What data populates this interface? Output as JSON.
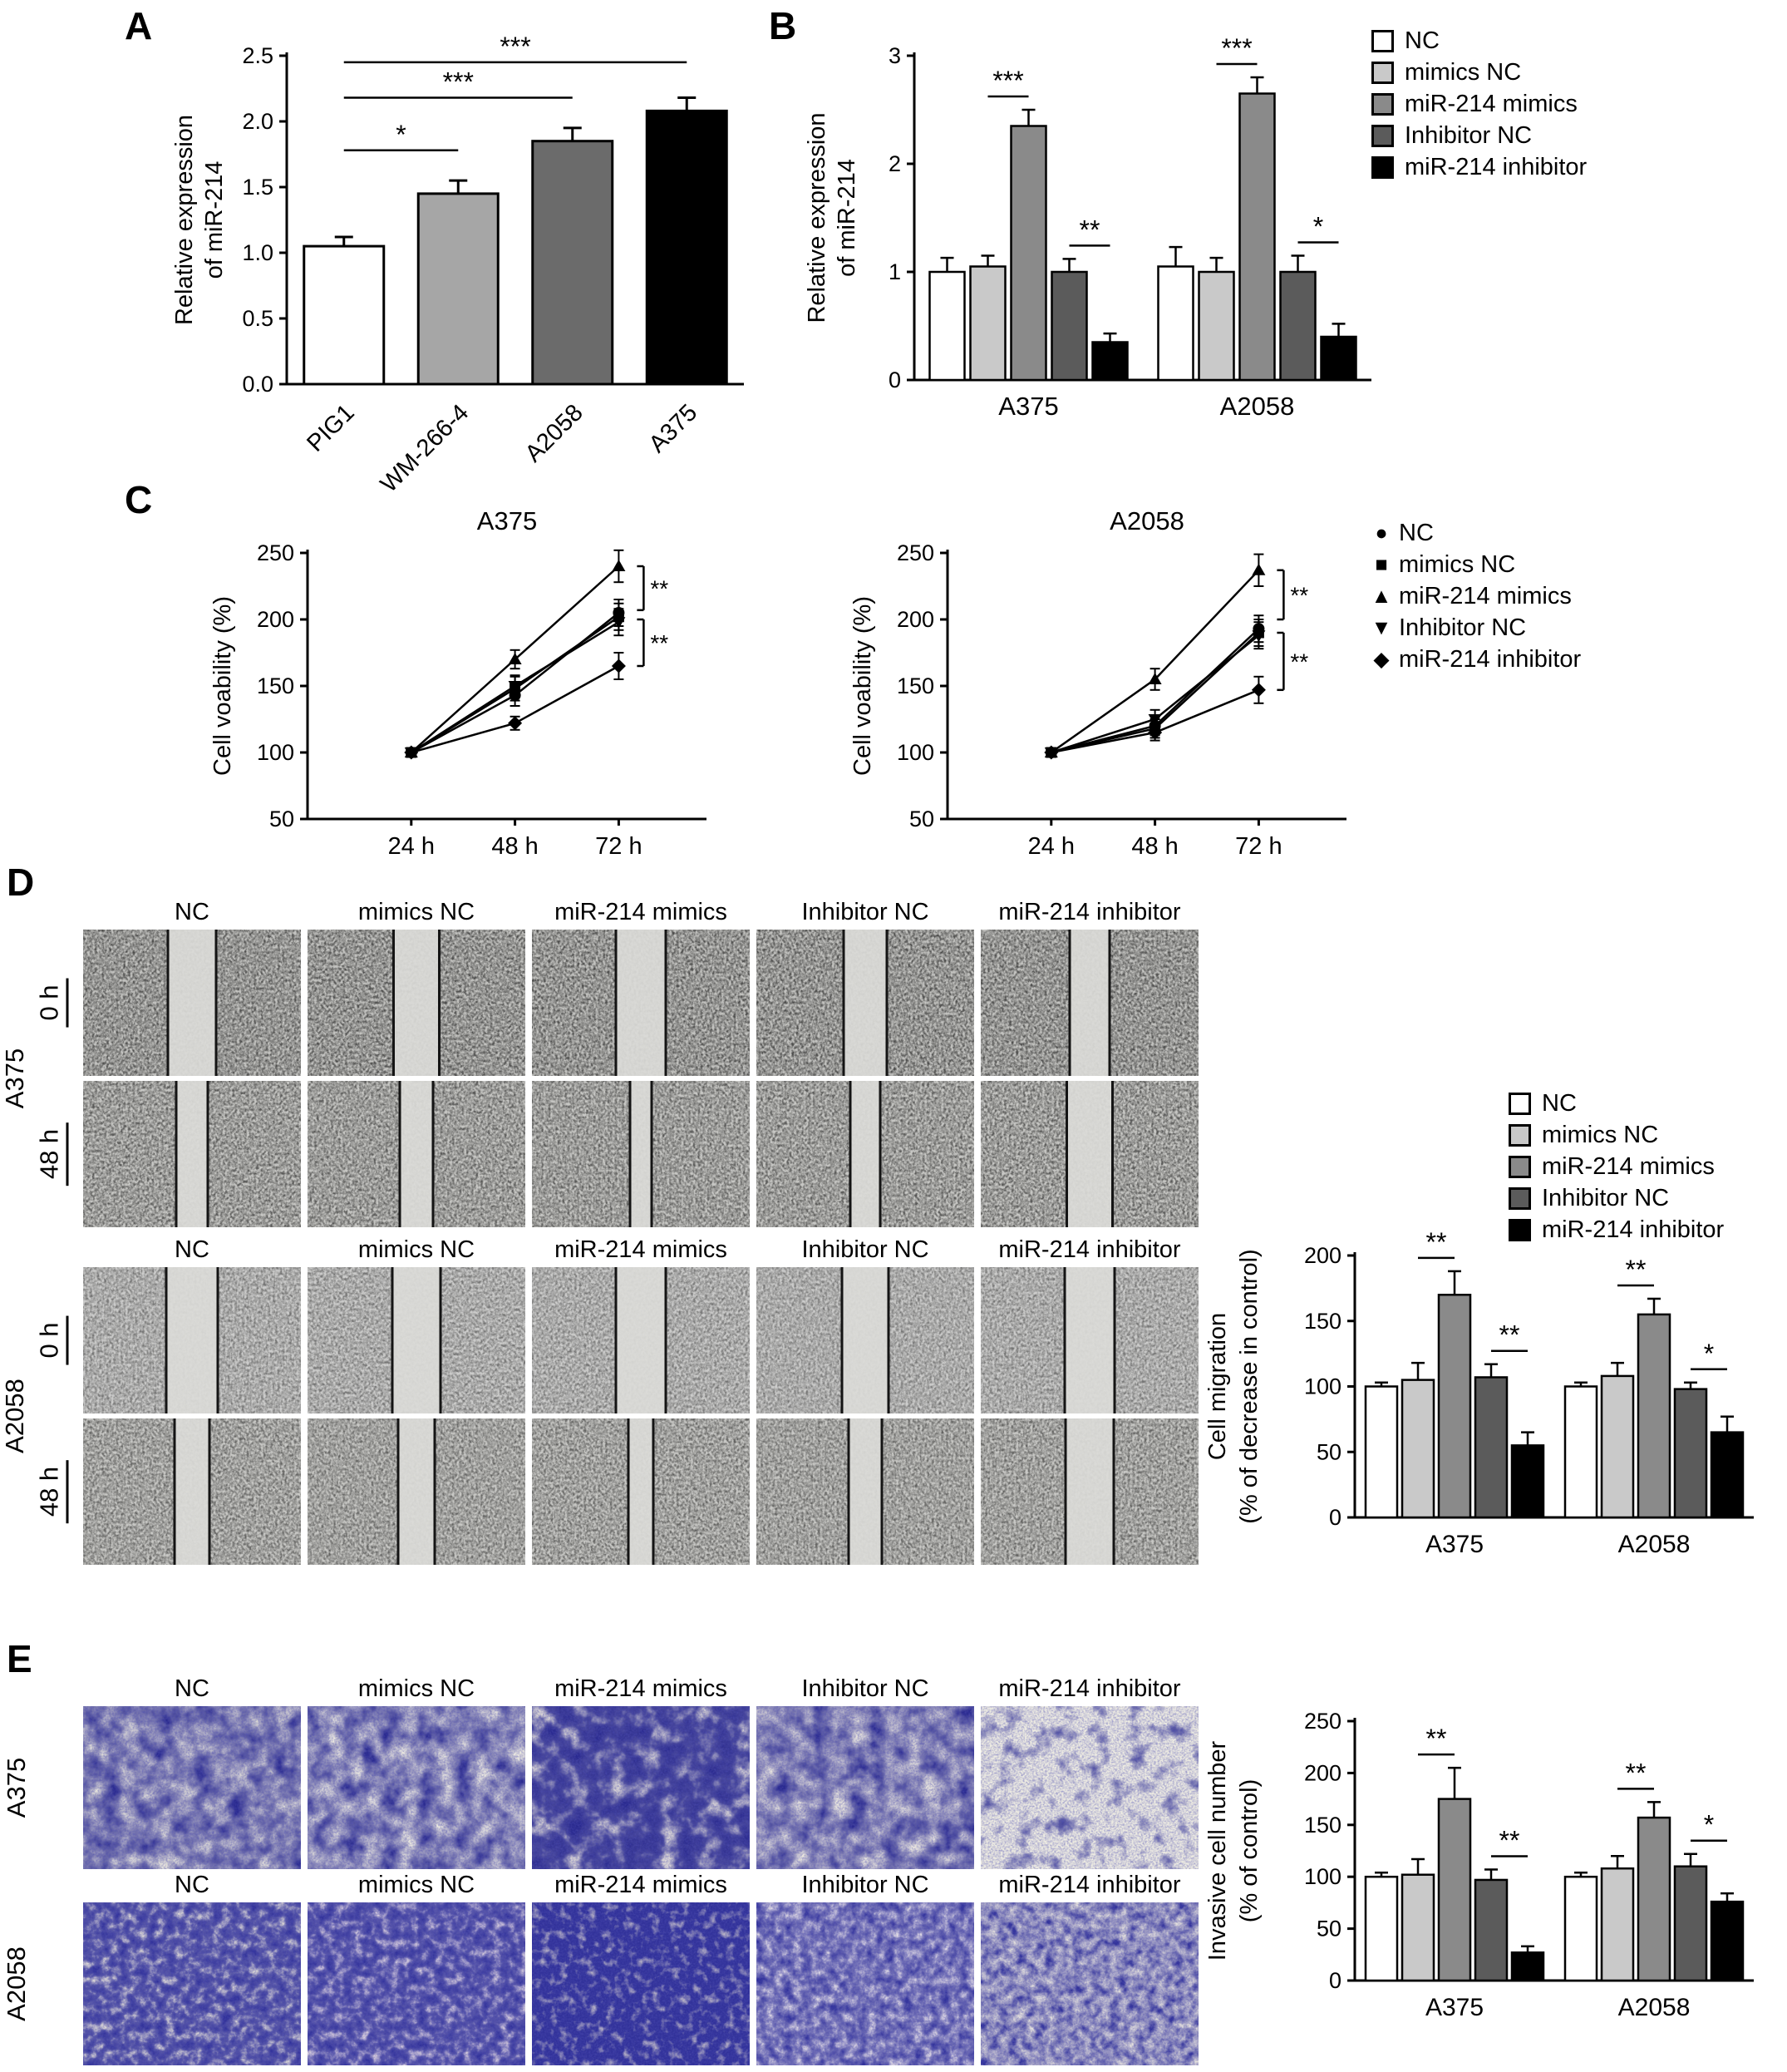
{
  "panel_labels": {
    "a": "A",
    "b": "B",
    "c": "C",
    "d": "D",
    "e": "E"
  },
  "groups": [
    "NC",
    "mimics NC",
    "miR-214 mimics",
    "Inhibitor NC",
    "miR-214 inhibitor"
  ],
  "group_colors": [
    "#ffffff",
    "#c9c9c9",
    "#8a8a8a",
    "#5b5b5b",
    "#000000"
  ],
  "legend_markers": [
    "●",
    "■",
    "▲",
    "▼",
    "◆"
  ],
  "panel_d": {
    "column_headers": [
      "NC",
      "mimics NC",
      "miR-214 mimics",
      "Inhibitor NC",
      "miR-214 inhibitor"
    ],
    "row_blocks": [
      {
        "cell_line": "A375",
        "timepoints": [
          "0 h",
          "48 h"
        ]
      },
      {
        "cell_line": "A2058",
        "timepoints": [
          "0 h",
          "48 h"
        ]
      }
    ]
  },
  "panel_e": {
    "column_headers": [
      "NC",
      "mimics NC",
      "miR-214 mimics",
      "Inhibitor NC",
      "miR-214 inhibitor"
    ],
    "cell_lines": [
      "A375",
      "A2058"
    ]
  },
  "chart_data": [
    {
      "id": "panel-a-chart",
      "type": "bar",
      "ylabel_lines": [
        "Relative expression",
        "of miR-214"
      ],
      "categories": [
        "PIG1",
        "WM-266-4",
        "A2058",
        "A375"
      ],
      "values": [
        1.05,
        1.45,
        1.85,
        2.08
      ],
      "errors": [
        0.07,
        0.1,
        0.1,
        0.1
      ],
      "bar_colors": [
        "#ffffff",
        "#a6a6a6",
        "#6b6b6b",
        "#000000"
      ],
      "ylim": [
        0,
        2.5
      ],
      "yticks": [
        0,
        0.5,
        1,
        1.5,
        2,
        2.5
      ],
      "ytick_labels": [
        "0.0",
        "0.5",
        "1.0",
        "1.5",
        "2.0",
        "2.5"
      ],
      "significance": [
        {
          "from": 0,
          "to": 1,
          "label": "*",
          "y": 1.78
        },
        {
          "from": 0,
          "to": 2,
          "label": "***",
          "y": 2.18
        },
        {
          "from": 0,
          "to": 3,
          "label": "***",
          "y": 2.45
        }
      ]
    },
    {
      "id": "panel-b-chart",
      "type": "grouped_bar",
      "ylabel_lines": [
        "Relative expression",
        "of miR-214"
      ],
      "categories": [
        "A375",
        "A2058"
      ],
      "series": [
        {
          "name": "NC",
          "values": [
            1.0,
            1.05
          ],
          "errors": [
            0.13,
            0.18
          ]
        },
        {
          "name": "mimics NC",
          "values": [
            1.05,
            1.0
          ],
          "errors": [
            0.1,
            0.13
          ]
        },
        {
          "name": "miR-214 mimics",
          "values": [
            2.35,
            2.65
          ],
          "errors": [
            0.15,
            0.15
          ]
        },
        {
          "name": "Inhibitor NC",
          "values": [
            1.0,
            1.0
          ],
          "errors": [
            0.12,
            0.15
          ]
        },
        {
          "name": "miR-214 inhibitor",
          "values": [
            0.35,
            0.4
          ],
          "errors": [
            0.08,
            0.12
          ]
        }
      ],
      "ylim": [
        0,
        3
      ],
      "yticks": [
        0,
        1,
        2,
        3
      ],
      "ytick_labels": [
        "0",
        "1",
        "2",
        "3"
      ],
      "significance": [
        {
          "group": 0,
          "a": 1,
          "b": 2,
          "label": "***"
        },
        {
          "group": 0,
          "a": 3,
          "b": 4,
          "label": "**"
        },
        {
          "group": 1,
          "a": 1,
          "b": 2,
          "label": "***"
        },
        {
          "group": 1,
          "a": 3,
          "b": 4,
          "label": "*"
        }
      ]
    },
    {
      "id": "panel-c-a375",
      "type": "line",
      "title": "A375",
      "ylabel": "Cell voability (%)",
      "x": [
        "24 h",
        "48 h",
        "72 h"
      ],
      "series": [
        {
          "name": "NC",
          "marker": "circle",
          "values": [
            100,
            143,
            205
          ],
          "errors": [
            3,
            8,
            10
          ]
        },
        {
          "name": "mimics NC",
          "marker": "square",
          "values": [
            100,
            148,
            202
          ],
          "errors": [
            3,
            9,
            10
          ]
        },
        {
          "name": "miR-214 mimics",
          "marker": "triangle-up",
          "values": [
            100,
            170,
            240
          ],
          "errors": [
            3,
            7,
            12
          ]
        },
        {
          "name": "Inhibitor NC",
          "marker": "triangle-down",
          "values": [
            100,
            150,
            198
          ],
          "errors": [
            3,
            8,
            10
          ]
        },
        {
          "name": "miR-214 inhibitor",
          "marker": "diamond",
          "values": [
            100,
            122,
            165
          ],
          "errors": [
            3,
            5,
            10
          ]
        }
      ],
      "ylim": [
        50,
        250
      ],
      "yticks": [
        50,
        100,
        150,
        200,
        250
      ],
      "significance": [
        {
          "label": "**",
          "from": 240,
          "to": 207
        },
        {
          "label": "**",
          "from": 200,
          "to": 165
        }
      ]
    },
    {
      "id": "panel-c-a2058",
      "type": "line",
      "title": "A2058",
      "ylabel": "Cell voability (%)",
      "x": [
        "24 h",
        "48 h",
        "72 h"
      ],
      "series": [
        {
          "name": "NC",
          "marker": "circle",
          "values": [
            100,
            120,
            193
          ],
          "errors": [
            3,
            7,
            10
          ]
        },
        {
          "name": "mimics NC",
          "marker": "square",
          "values": [
            100,
            118,
            190
          ],
          "errors": [
            3,
            7,
            10
          ]
        },
        {
          "name": "miR-214 mimics",
          "marker": "triangle-up",
          "values": [
            100,
            155,
            237
          ],
          "errors": [
            3,
            8,
            12
          ]
        },
        {
          "name": "Inhibitor NC",
          "marker": "triangle-down",
          "values": [
            100,
            125,
            188
          ],
          "errors": [
            3,
            7,
            10
          ]
        },
        {
          "name": "miR-214 inhibitor",
          "marker": "diamond",
          "values": [
            100,
            115,
            147
          ],
          "errors": [
            3,
            6,
            10
          ]
        }
      ],
      "ylim": [
        50,
        250
      ],
      "yticks": [
        50,
        100,
        150,
        200,
        250
      ],
      "significance": [
        {
          "label": "**",
          "from": 237,
          "to": 200
        },
        {
          "label": "**",
          "from": 190,
          "to": 147
        }
      ]
    },
    {
      "id": "panel-d-chart",
      "type": "grouped_bar",
      "ylabel_lines": [
        "Cell migration",
        "(% of decrease in control)"
      ],
      "categories": [
        "A375",
        "A2058"
      ],
      "series": [
        {
          "name": "NC",
          "values": [
            100,
            100
          ],
          "errors": [
            3,
            3
          ]
        },
        {
          "name": "mimics NC",
          "values": [
            105,
            108
          ],
          "errors": [
            13,
            10
          ]
        },
        {
          "name": "miR-214 mimics",
          "values": [
            170,
            155
          ],
          "errors": [
            18,
            12
          ]
        },
        {
          "name": "Inhibitor NC",
          "values": [
            107,
            98
          ],
          "errors": [
            10,
            5
          ]
        },
        {
          "name": "miR-214 inhibitor",
          "values": [
            55,
            65
          ],
          "errors": [
            10,
            12
          ]
        }
      ],
      "ylim": [
        0,
        200
      ],
      "yticks": [
        0,
        50,
        100,
        150,
        200
      ],
      "ytick_labels": [
        "0",
        "50",
        "100",
        "150",
        "200"
      ],
      "significance": [
        {
          "group": 0,
          "a": 1,
          "b": 2,
          "label": "**"
        },
        {
          "group": 0,
          "a": 3,
          "b": 4,
          "label": "**"
        },
        {
          "group": 1,
          "a": 1,
          "b": 2,
          "label": "**"
        },
        {
          "group": 1,
          "a": 3,
          "b": 4,
          "label": "*"
        }
      ]
    },
    {
      "id": "panel-e-chart",
      "type": "grouped_bar",
      "ylabel_lines": [
        "Invasive cell number",
        "(% of control)"
      ],
      "categories": [
        "A375",
        "A2058"
      ],
      "series": [
        {
          "name": "NC",
          "values": [
            100,
            100
          ],
          "errors": [
            4,
            4
          ]
        },
        {
          "name": "mimics NC",
          "values": [
            102,
            108
          ],
          "errors": [
            15,
            12
          ]
        },
        {
          "name": "miR-214 mimics",
          "values": [
            175,
            157
          ],
          "errors": [
            30,
            15
          ]
        },
        {
          "name": "Inhibitor NC",
          "values": [
            97,
            110
          ],
          "errors": [
            10,
            12
          ]
        },
        {
          "name": "miR-214 inhibitor",
          "values": [
            27,
            76
          ],
          "errors": [
            6,
            8
          ]
        }
      ],
      "ylim": [
        0,
        250
      ],
      "yticks": [
        0,
        50,
        100,
        150,
        200,
        250
      ],
      "ytick_labels": [
        "0",
        "50",
        "100",
        "150",
        "200",
        "250"
      ],
      "significance": [
        {
          "group": 0,
          "a": 1,
          "b": 2,
          "label": "**"
        },
        {
          "group": 0,
          "a": 3,
          "b": 4,
          "label": "**"
        },
        {
          "group": 1,
          "a": 1,
          "b": 2,
          "label": "**"
        },
        {
          "group": 1,
          "a": 3,
          "b": 4,
          "label": "*"
        }
      ]
    }
  ]
}
